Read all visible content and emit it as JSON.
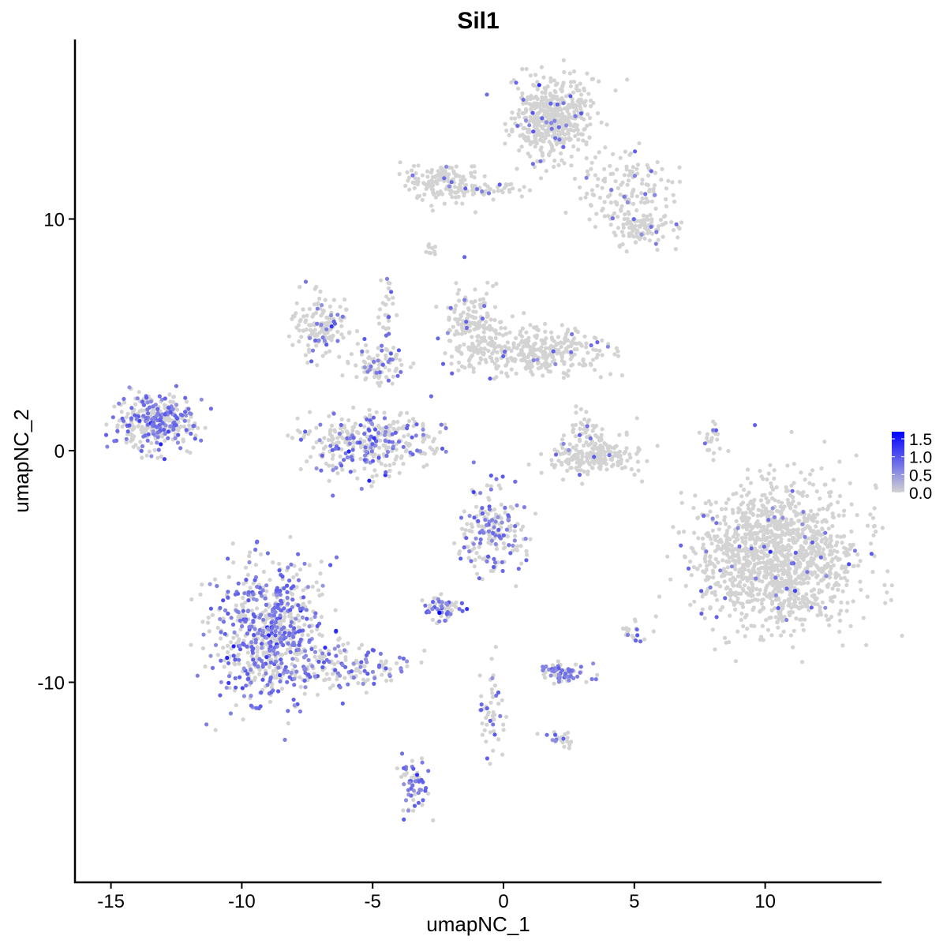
{
  "chart_data": {
    "type": "scatter",
    "title": "Sil1",
    "xlabel": "umapNC_1",
    "ylabel": "umapNC_2",
    "xlim": [
      -16.4,
      14.45
    ],
    "ylim": [
      -18.6,
      17.75
    ],
    "xticks": [
      -15,
      -10,
      -5,
      0,
      5,
      10
    ],
    "yticks": [
      -10,
      0,
      10
    ],
    "grid": false,
    "legend": {
      "placement": "right",
      "ticks": [
        1.5,
        1.0,
        0.5,
        0.0
      ],
      "range": [
        0,
        1.7
      ],
      "low_color": "#d3d3d3",
      "high_color": "#0000ff"
    },
    "clusters": [
      {
        "center": [
          1.87,
          14.31
        ],
        "sd": [
          0.75,
          0.85
        ],
        "n": 500,
        "expr_frac": 0.05
      },
      {
        "center": [
          4.61,
          11.28
        ],
        "sd": [
          0.9,
          0.85
        ],
        "n": 150,
        "expr_frac": 0.06
      },
      {
        "center": [
          5.37,
          9.57
        ],
        "sd": [
          0.6,
          0.4
        ],
        "n": 100,
        "expr_frac": 0.08
      },
      {
        "center": [
          -2.36,
          11.62
        ],
        "sd": [
          0.75,
          0.4
        ],
        "n": 150,
        "expr_frac": 0.04
      },
      {
        "center": [
          -0.54,
          11.28
        ],
        "sd": [
          0.9,
          0.17
        ],
        "n": 40,
        "expr_frac": 0.05
      },
      {
        "center": [
          -2.81,
          8.69
        ],
        "sd": [
          0.2,
          0.15
        ],
        "n": 10,
        "expr_frac": 0
      },
      {
        "center": [
          -13.36,
          1.23
        ],
        "sd": [
          0.75,
          0.6
        ],
        "n": 350,
        "expr_frac": 0.35
      },
      {
        "center": [
          -6.88,
          5.31
        ],
        "sd": [
          0.6,
          0.7
        ],
        "n": 150,
        "expr_frac": 0.2
      },
      {
        "center": [
          -4.76,
          3.78
        ],
        "sd": [
          0.5,
          0.4
        ],
        "n": 80,
        "expr_frac": 0.2
      },
      {
        "center": [
          -5.18,
          0.37
        ],
        "sd": [
          1.2,
          0.68
        ],
        "n": 350,
        "expr_frac": 0.3
      },
      {
        "center": [
          -1.15,
          5.14
        ],
        "sd": [
          0.6,
          0.85
        ],
        "n": 200,
        "expr_frac": 0.05
      },
      {
        "center": [
          1.27,
          4.29
        ],
        "sd": [
          1.2,
          0.5
        ],
        "n": 300,
        "expr_frac": 0.05
      },
      {
        "center": [
          3.38,
          -0.31
        ],
        "sd": [
          0.9,
          0.4
        ],
        "n": 200,
        "expr_frac": 0.02
      },
      {
        "center": [
          3.08,
          0.89
        ],
        "sd": [
          0.3,
          0.4
        ],
        "n": 40,
        "expr_frac": 0.05
      },
      {
        "center": [
          10.46,
          -4.57
        ],
        "sd": [
          1.5,
          1.5
        ],
        "n": 1400,
        "expr_frac": 0.03
      },
      {
        "center": [
          -9.0,
          -7.8
        ],
        "sd": [
          1.05,
          1.5
        ],
        "n": 700,
        "expr_frac": 0.45
      },
      {
        "center": [
          -6.0,
          -9.33
        ],
        "sd": [
          1.2,
          0.5
        ],
        "n": 150,
        "expr_frac": 0.4
      },
      {
        "center": [
          -0.39,
          -3.54
        ],
        "sd": [
          0.6,
          1.0
        ],
        "n": 200,
        "expr_frac": 0.3
      },
      {
        "center": [
          -2.35,
          -6.8
        ],
        "sd": [
          0.45,
          0.27
        ],
        "n": 60,
        "expr_frac": 0.5
      },
      {
        "center": [
          2.3,
          -9.6
        ],
        "sd": [
          0.45,
          0.2
        ],
        "n": 80,
        "expr_frac": 0.5
      },
      {
        "center": [
          -3.4,
          -14.45
        ],
        "sd": [
          0.25,
          0.7
        ],
        "n": 60,
        "expr_frac": 0.6
      },
      {
        "center": [
          -0.39,
          -11.21
        ],
        "sd": [
          0.3,
          1.0
        ],
        "n": 50,
        "expr_frac": 0.3
      },
      {
        "center": [
          -4.46,
          5.83
        ],
        "sd": [
          0.18,
          1.0
        ],
        "n": 30,
        "expr_frac": 0.1
      },
      {
        "center": [
          7.9,
          0.37
        ],
        "sd": [
          0.15,
          0.5
        ],
        "n": 20,
        "expr_frac": 0.1
      },
      {
        "center": [
          2.2,
          -12.4
        ],
        "sd": [
          0.3,
          0.2
        ],
        "n": 20,
        "expr_frac": 0.3
      },
      {
        "center": [
          5.01,
          -7.67
        ],
        "sd": [
          0.3,
          0.3
        ],
        "n": 20,
        "expr_frac": 0.2
      }
    ]
  }
}
